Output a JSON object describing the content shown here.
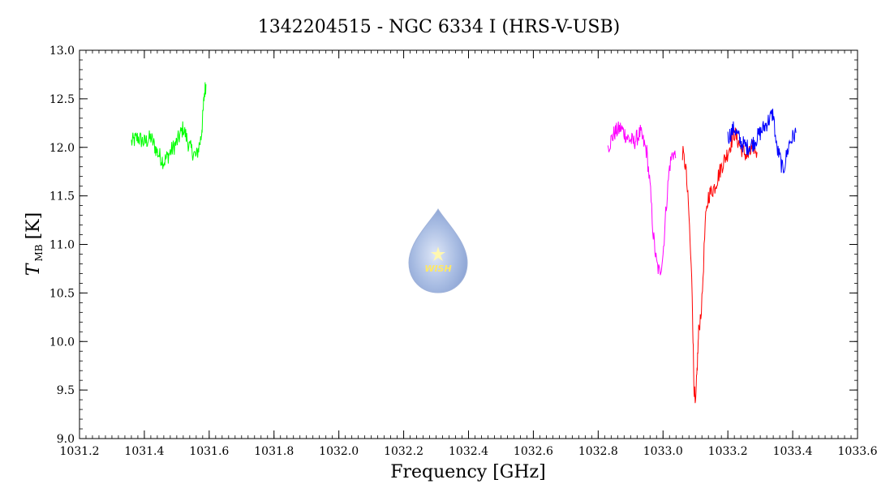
{
  "chart_data": {
    "type": "line",
    "title": "1342204515 - NGC 6334 I (HRS-V-USB)",
    "xlabel": "Frequency [GHz]",
    "ylabel_main": "T",
    "ylabel_sub": "MB",
    "ylabel_unit": "[K]",
    "xlim": [
      1031.2,
      1033.6
    ],
    "ylim": [
      9.0,
      13.0
    ],
    "xticks": [
      "1031.2",
      "1031.4",
      "1031.6",
      "1031.8",
      "1032.0",
      "1032.2",
      "1032.4",
      "1032.6",
      "1032.8",
      "1033.0",
      "1033.2",
      "1033.4",
      "1033.6"
    ],
    "yticks": [
      "9.0",
      "9.5",
      "10.0",
      "10.5",
      "11.0",
      "11.5",
      "12.0",
      "12.5",
      "13.0"
    ],
    "grid": false,
    "logo_text": "WISH",
    "series": [
      {
        "color": "#00ff00",
        "x": [
          1031.36,
          1031.38,
          1031.4,
          1031.42,
          1031.44,
          1031.46,
          1031.48,
          1031.5,
          1031.52,
          1031.54,
          1031.56,
          1031.575,
          1031.58,
          1031.585,
          1031.59
        ],
        "y": [
          12.05,
          12.1,
          12.05,
          12.1,
          11.95,
          11.85,
          11.95,
          12.05,
          12.2,
          12.0,
          11.9,
          12.1,
          12.3,
          12.55,
          12.65
        ]
      },
      {
        "color": "#ff00ff",
        "x": [
          1032.83,
          1032.85,
          1032.87,
          1032.89,
          1032.91,
          1032.93,
          1032.95,
          1032.96,
          1032.97,
          1032.98,
          1032.99,
          1033.0,
          1033.01,
          1033.02,
          1033.03,
          1033.04
        ],
        "y": [
          12.0,
          12.15,
          12.2,
          12.1,
          12.05,
          12.15,
          11.95,
          11.6,
          11.1,
          10.8,
          10.7,
          10.9,
          11.4,
          11.8,
          11.95,
          11.9
        ]
      },
      {
        "color": "#ff0000",
        "x": [
          1033.06,
          1033.07,
          1033.08,
          1033.09,
          1033.095,
          1033.1,
          1033.105,
          1033.11,
          1033.12,
          1033.13,
          1033.14,
          1033.16,
          1033.18,
          1033.2,
          1033.22,
          1033.24,
          1033.26,
          1033.28,
          1033.29
        ],
        "y": [
          11.95,
          11.8,
          11.3,
          10.5,
          9.6,
          9.3,
          9.7,
          10.1,
          10.4,
          11.2,
          11.5,
          11.6,
          11.8,
          11.95,
          12.15,
          12.0,
          11.9,
          12.0,
          11.95
        ]
      },
      {
        "color": "#0000ff",
        "x": [
          1033.2,
          1033.22,
          1033.24,
          1033.26,
          1033.28,
          1033.3,
          1033.32,
          1033.34,
          1033.35,
          1033.36,
          1033.37,
          1033.38,
          1033.39,
          1033.4,
          1033.41
        ],
        "y": [
          12.1,
          12.2,
          12.05,
          12.0,
          12.05,
          12.15,
          12.25,
          12.35,
          12.0,
          11.9,
          11.75,
          11.9,
          12.05,
          12.1,
          12.15
        ]
      }
    ]
  }
}
